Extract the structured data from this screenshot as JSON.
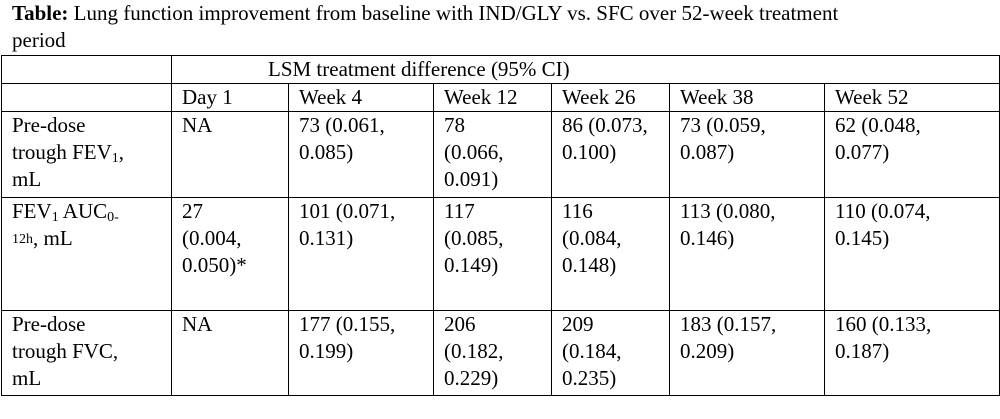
{
  "caption": {
    "label": "Table:",
    "text_line1": " Lung function improvement from baseline with IND/GLY vs. SFC over 52-week treatment",
    "text_line2": "period"
  },
  "table": {
    "group_header": "LSM treatment difference (95% CI)",
    "columns": [
      "Day 1",
      "Week 4",
      "Week 12",
      "Week 26",
      "Week 38",
      "Week 52"
    ],
    "rows": [
      {
        "label_lines": [
          "Pre-dose",
          "trough FEV",
          "mL"
        ],
        "label_sub": "1",
        "label_after_sub": ",",
        "cells": [
          [
            "NA"
          ],
          [
            "73 (0.061,",
            "0.085)"
          ],
          [
            "78",
            "(0.066,",
            "0.091)"
          ],
          [
            "86 (0.073,",
            "0.100)"
          ],
          [
            "73 (0.059,",
            "0.087)"
          ],
          [
            "62 (0.048,",
            "0.077)"
          ]
        ]
      },
      {
        "label_a": "FEV",
        "label_a_sub": "1",
        "label_b": " AUC",
        "label_b_sub": "0-",
        "label_c_sub": "12h",
        "label_c": ", mL",
        "cells": [
          [
            "27",
            "(0.004,",
            "0.050)*"
          ],
          [
            "101 (0.071,",
            "0.131)"
          ],
          [
            "117",
            "(0.085,",
            "0.149)"
          ],
          [
            "116",
            "(0.084,",
            "0.148)"
          ],
          [
            "113 (0.080,",
            "0.146)"
          ],
          [
            "110 (0.074,",
            "0.145)"
          ]
        ]
      },
      {
        "label_lines": [
          "Pre-dose",
          "trough FVC,",
          "mL"
        ],
        "cells": [
          [
            "NA"
          ],
          [
            "177 (0.155,",
            "0.199)"
          ],
          [
            "206",
            "(0.182,",
            "0.229)"
          ],
          [
            "209",
            "(0.184,",
            "0.235)"
          ],
          [
            "183 (0.157,",
            "0.209)"
          ],
          [
            "160 (0.133,",
            "0.187)"
          ]
        ]
      }
    ]
  }
}
